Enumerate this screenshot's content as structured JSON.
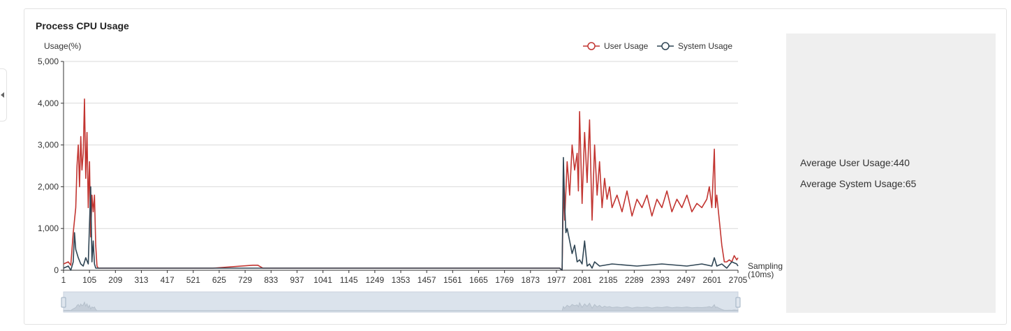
{
  "card": {
    "title": "Process CPU Usage"
  },
  "summary": {
    "avg_user_label": "Average User Usage:440",
    "avg_system_label": "Average System Usage:65"
  },
  "colors": {
    "user": "#c23531",
    "system": "#2f4554",
    "grid": "#d9d9d9",
    "axis": "#333333",
    "zoom_fill": "#dbe3ec"
  },
  "chart_data": {
    "type": "line",
    "title": "Process CPU Usage",
    "ylabel": "Usage(%)",
    "xlabel": "Sampling\n(10ms)",
    "ylim": [
      0,
      5000
    ],
    "yticks": [
      "0",
      "1,000",
      "2,000",
      "3,000",
      "4,000",
      "5,000"
    ],
    "xticks": [
      "1",
      "105",
      "209",
      "313",
      "417",
      "521",
      "625",
      "729",
      "833",
      "937",
      "1041",
      "1145",
      "1249",
      "1353",
      "1457",
      "1561",
      "1665",
      "1769",
      "1873",
      "1977",
      "2081",
      "2185",
      "2289",
      "2393",
      "2497",
      "2601",
      "2705"
    ],
    "xlim": [
      1,
      2705
    ],
    "legend": {
      "position": "top-right",
      "entries": [
        "User Usage",
        "System Usage"
      ]
    },
    "grid": true,
    "has_datazoom": true,
    "series": [
      {
        "name": "User Usage",
        "x": [
          1,
          20,
          30,
          40,
          50,
          55,
          60,
          65,
          70,
          75,
          80,
          85,
          90,
          95,
          100,
          105,
          110,
          115,
          120,
          125,
          130,
          135,
          140,
          150,
          200,
          400,
          600,
          760,
          780,
          800,
          840,
          1000,
          1500,
          1990,
          2000,
          2005,
          2010,
          2020,
          2030,
          2040,
          2050,
          2060,
          2065,
          2070,
          2080,
          2090,
          2100,
          2110,
          2120,
          2130,
          2140,
          2150,
          2160,
          2170,
          2180,
          2190,
          2200,
          2220,
          2240,
          2260,
          2280,
          2300,
          2320,
          2340,
          2360,
          2380,
          2400,
          2420,
          2440,
          2460,
          2480,
          2500,
          2520,
          2540,
          2560,
          2580,
          2590,
          2600,
          2610,
          2615,
          2620,
          2630,
          2640,
          2650,
          2660,
          2670,
          2680,
          2690,
          2700,
          2705
        ],
        "y": [
          150,
          200,
          120,
          900,
          1500,
          2500,
          3000,
          2000,
          3200,
          2400,
          2800,
          4100,
          2200,
          3300,
          1500,
          2600,
          800,
          1800,
          1400,
          1800,
          600,
          100,
          50,
          50,
          50,
          50,
          50,
          120,
          120,
          50,
          50,
          50,
          50,
          50,
          0,
          2000,
          1200,
          2600,
          1800,
          3000,
          2400,
          2800,
          1900,
          3800,
          1600,
          3300,
          2100,
          3600,
          1200,
          3000,
          1800,
          2600,
          1500,
          2200,
          1700,
          2000,
          1500,
          1800,
          1400,
          1900,
          1300,
          1700,
          1500,
          1800,
          1300,
          1700,
          1500,
          1900,
          1400,
          1700,
          1500,
          1800,
          1400,
          1600,
          1500,
          1700,
          2000,
          1500,
          2900,
          1500,
          1800,
          1200,
          600,
          200,
          200,
          250,
          200,
          350,
          250,
          300
        ]
      },
      {
        "name": "System Usage",
        "x": [
          1,
          20,
          30,
          40,
          45,
          50,
          60,
          70,
          80,
          90,
          100,
          110,
          115,
          120,
          125,
          130,
          140,
          150,
          200,
          400,
          600,
          800,
          1000,
          1500,
          1990,
          2000,
          2005,
          2010,
          2015,
          2020,
          2030,
          2040,
          2050,
          2060,
          2070,
          2080,
          2090,
          2100,
          2110,
          2120,
          2130,
          2150,
          2200,
          2300,
          2400,
          2500,
          2560,
          2600,
          2610,
          2620,
          2640,
          2660,
          2680,
          2700,
          2705
        ],
        "y": [
          50,
          100,
          0,
          200,
          900,
          500,
          300,
          150,
          100,
          300,
          150,
          2000,
          200,
          700,
          150,
          50,
          50,
          50,
          50,
          50,
          50,
          50,
          50,
          50,
          50,
          0,
          2700,
          1600,
          900,
          1000,
          700,
          400,
          600,
          200,
          250,
          150,
          700,
          100,
          150,
          50,
          200,
          100,
          150,
          100,
          150,
          100,
          150,
          100,
          300,
          100,
          150,
          50,
          200,
          150,
          100
        ]
      }
    ]
  }
}
